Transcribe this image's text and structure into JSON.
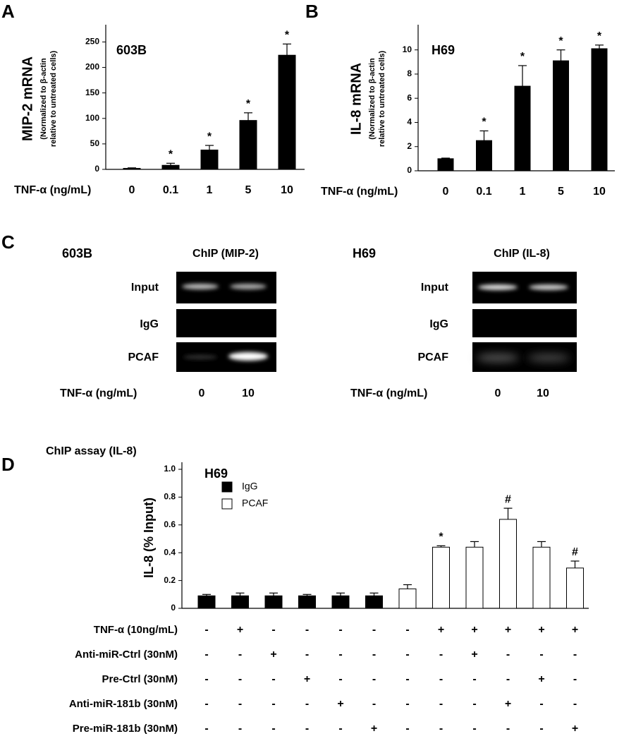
{
  "panel_labels": [
    "A",
    "B",
    "C",
    "D"
  ],
  "chart_data": [
    {
      "type": "bar",
      "annotation": "603B",
      "ylabel": "MIP-2 mRNA",
      "ylabel_note": [
        "(Normalized to β-actin",
        "relative to untreated cells)"
      ],
      "xlabel": "TNF-α (ng/mL)",
      "categories": [
        "0",
        "0.1",
        "1",
        "5",
        "10"
      ],
      "values": [
        2,
        8,
        38,
        96,
        224
      ],
      "errors": [
        1,
        4,
        9,
        15,
        22
      ],
      "markers": [
        null,
        "*",
        "*",
        "*",
        "*"
      ],
      "color": "#000000",
      "ylim": [
        0,
        270
      ],
      "yticks": [
        0,
        50,
        100,
        150,
        200,
        250
      ]
    },
    {
      "type": "bar",
      "annotation": "H69",
      "ylabel": "IL-8 mRNA",
      "ylabel_note": [
        "(Normalized to β-actin",
        "relative to untreated cells)"
      ],
      "xlabel": "TNF-α (ng/mL)",
      "categories": [
        "0",
        "0.1",
        "1",
        "5",
        "10"
      ],
      "values": [
        1,
        2.5,
        7.0,
        9.1,
        10.1
      ],
      "errors": [
        0.05,
        0.8,
        1.7,
        0.9,
        0.3
      ],
      "markers": [
        null,
        "*",
        "*",
        "*",
        "*"
      ],
      "color": "#000000",
      "ylim": [
        0,
        11.5
      ],
      "yticks": [
        0,
        2,
        4,
        6,
        8,
        10
      ]
    },
    {
      "type": "bar",
      "title": "ChIP assay (IL-8)",
      "annotation": "H69",
      "ylabel": "IL-8 (% Input)",
      "series": [
        {
          "name": "IgG",
          "color": "#000000",
          "values": [
            0.09,
            0.09,
            0.09,
            0.09,
            0.09,
            0.09,
            null,
            null,
            null,
            null,
            null,
            null
          ],
          "errors": [
            0.01,
            0.02,
            0.02,
            0.01,
            0.02,
            0.02,
            null,
            null,
            null,
            null,
            null,
            null
          ]
        },
        {
          "name": "PCAF",
          "color": "#ffffff",
          "values": [
            null,
            null,
            null,
            null,
            null,
            null,
            0.14,
            0.44,
            0.44,
            0.64,
            0.44,
            0.29
          ],
          "errors": [
            null,
            null,
            null,
            null,
            null,
            null,
            0.03,
            0.01,
            0.04,
            0.08,
            0.04,
            0.05
          ]
        }
      ],
      "markers": [
        null,
        null,
        null,
        null,
        null,
        null,
        null,
        "*",
        null,
        "#",
        null,
        "#"
      ],
      "conditions": [
        {
          "label": "TNF-α (10ng/mL)",
          "values": [
            "-",
            "+",
            "-",
            "-",
            "-",
            "-",
            "-",
            "+",
            "+",
            "+",
            "+",
            "+"
          ]
        },
        {
          "label": "Anti-miR-Ctrl (30nM)",
          "values": [
            "-",
            "-",
            "+",
            "-",
            "-",
            "-",
            "-",
            "-",
            "+",
            "-",
            "-",
            "-"
          ]
        },
        {
          "label": "Pre-Ctrl (30nM)",
          "values": [
            "-",
            "-",
            "-",
            "+",
            "-",
            "-",
            "-",
            "-",
            "-",
            "-",
            "+",
            "-"
          ]
        },
        {
          "label": "Anti-miR-181b (30nM)",
          "values": [
            "-",
            "-",
            "-",
            "-",
            "+",
            "-",
            "-",
            "-",
            "-",
            "+",
            "-",
            "-"
          ]
        },
        {
          "label": "Pre-miR-181b (30nM)",
          "values": [
            "-",
            "-",
            "-",
            "-",
            "-",
            "+",
            "-",
            "-",
            "-",
            "-",
            "-",
            "+"
          ]
        }
      ],
      "ylim": [
        0,
        1.0
      ],
      "yticks": [
        0,
        0.2,
        0.4,
        0.6,
        0.8,
        {
          "value": 1.0,
          "label": "1.0"
        }
      ]
    }
  ],
  "gels": [
    {
      "cell": "603B",
      "title": "ChIP (MIP-2)",
      "rows": [
        "Input",
        "IgG",
        "PCAF"
      ],
      "treatment_label": "TNF-α (ng/mL)",
      "lanes": [
        "0",
        "10"
      ]
    },
    {
      "cell": "H69",
      "title": "ChIP (IL-8)",
      "rows": [
        "Input",
        "IgG",
        "PCAF"
      ],
      "treatment_label": "TNF-α (ng/mL)",
      "lanes": [
        "0",
        "10"
      ]
    }
  ]
}
